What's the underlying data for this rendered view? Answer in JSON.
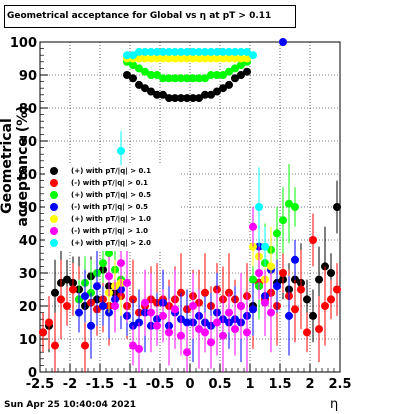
{
  "title": "Geometrical acceptance for Global vs  η at pT > 0.11",
  "timestamp": "Sun Apr 25 10:40:04 2021",
  "colors": {
    "pos_01": "#000000",
    "neg_01": "#ff0000",
    "pos_05": "#00ff00",
    "neg_05": "#0000ff",
    "pos_10": "#ffff00",
    "neg_10": "#ff00ff",
    "pos_20": "#00ffff"
  },
  "chart_data": {
    "type": "scatter",
    "xlabel": "η",
    "ylabel": "Geometrical acceptance (%)",
    "xlim": [
      -2.5,
      2.5
    ],
    "ylim": [
      0,
      100
    ],
    "x_ticks": [
      "-2.5",
      "-2",
      "-1.5",
      "-1",
      "-0.5",
      "0",
      "0.5",
      "1",
      "1.5",
      "2",
      "2.5"
    ],
    "y_ticks": [
      "0",
      "10",
      "20",
      "30",
      "40",
      "50",
      "60",
      "70",
      "80",
      "90",
      "100"
    ],
    "grid": true,
    "legend_position": "left-middle",
    "legend": [
      "(+) with pT/|q| > 0.1",
      "(-) with pT/|q| > 0.1",
      "(+) with pT/|q| > 0.5",
      "(-) with pT/|q| > 0.5",
      "(+) with pT/|q| > 1.0",
      "(-) with pT/|q| > 1.0",
      "(+) with pT/|q| > 2.0"
    ],
    "series": [
      {
        "name": "(+) with pT/|q| > 0.1",
        "color": "#000000",
        "x": [
          -2.45,
          -2.35,
          -2.25,
          -2.15,
          -2.05,
          -1.95,
          -1.85,
          -1.75,
          -1.65,
          -1.55,
          -1.45,
          -1.35,
          -1.25,
          -1.15,
          -1.05,
          -0.95,
          -0.85,
          -0.75,
          -0.65,
          -0.55,
          -0.45,
          -0.35,
          -0.25,
          -0.15,
          -0.05,
          0.05,
          0.15,
          0.25,
          0.35,
          0.45,
          0.55,
          0.65,
          0.75,
          0.85,
          0.95,
          1.05,
          1.15,
          1.25,
          1.35,
          1.45,
          1.55,
          1.65,
          1.75,
          1.85,
          1.95,
          2.05,
          2.15,
          2.25,
          2.35,
          2.45
        ],
        "y": [
          12,
          14,
          24,
          27,
          28,
          27,
          25,
          20,
          29,
          22,
          31,
          26,
          24,
          23,
          90,
          89,
          87,
          86,
          85,
          84,
          84,
          83,
          83,
          83,
          83,
          83,
          83,
          84,
          84,
          85,
          86,
          87,
          89,
          90,
          91,
          20,
          27,
          22,
          24,
          27,
          28,
          25,
          28,
          27,
          22,
          17,
          28,
          32,
          30,
          50
        ]
      },
      {
        "name": "(-) with pT/|q| > 0.1",
        "color": "#ff0000",
        "x": [
          -2.45,
          -2.35,
          -2.25,
          -2.15,
          -2.05,
          -1.95,
          -1.85,
          -1.75,
          -1.65,
          -1.55,
          -1.45,
          -1.35,
          -1.25,
          -1.15,
          -1.05,
          -0.95,
          -0.85,
          -0.75,
          -0.65,
          -0.55,
          -0.45,
          -0.35,
          -0.25,
          -0.15,
          -0.05,
          0.05,
          0.15,
          0.25,
          0.35,
          0.45,
          0.55,
          0.65,
          0.75,
          0.85,
          0.95,
          1.05,
          1.15,
          1.25,
          1.35,
          1.45,
          1.55,
          1.65,
          1.75,
          1.85,
          1.95,
          2.05,
          2.15,
          2.25,
          2.35,
          2.45
        ],
        "y": [
          12,
          15,
          8,
          22,
          20,
          25,
          22,
          8,
          21,
          19,
          22,
          20,
          26,
          23,
          20,
          22,
          18,
          20,
          22,
          21,
          22,
          20,
          22,
          24,
          19,
          23,
          21,
          24,
          20,
          25,
          22,
          24,
          22,
          20,
          23,
          19,
          27,
          22,
          24,
          20,
          30,
          23,
          19,
          25,
          12,
          40,
          13,
          20,
          22,
          25
        ]
      },
      {
        "name": "(+) with pT/|q| > 0.5",
        "color": "#00ff00",
        "x": [
          -1.85,
          -1.75,
          -1.65,
          -1.55,
          -1.45,
          -1.35,
          -1.25,
          -1.15,
          -1.05,
          -0.95,
          -0.85,
          -0.75,
          -0.65,
          -0.55,
          -0.45,
          -0.35,
          -0.25,
          -0.15,
          -0.05,
          0.05,
          0.15,
          0.25,
          0.35,
          0.45,
          0.55,
          0.65,
          0.75,
          0.85,
          0.95,
          1.05,
          1.15,
          1.25,
          1.35,
          1.45,
          1.55,
          1.65,
          1.75
        ],
        "y": [
          22,
          27,
          24,
          30,
          33,
          36,
          31,
          28,
          94,
          93,
          92,
          91,
          90,
          90,
          89,
          89,
          89,
          89,
          89,
          89,
          89,
          89,
          90,
          90,
          90,
          91,
          92,
          93,
          94,
          28,
          26,
          33,
          37,
          42,
          46,
          51,
          50
        ]
      },
      {
        "name": "(-) with pT/|q| > 0.5",
        "color": "#0000ff",
        "x": [
          -1.85,
          -1.75,
          -1.65,
          -1.55,
          -1.45,
          -1.35,
          -1.25,
          -1.15,
          -1.05,
          -0.95,
          -0.85,
          -0.75,
          -0.65,
          -0.55,
          -0.45,
          -0.35,
          -0.25,
          -0.15,
          -0.05,
          0.05,
          0.15,
          0.25,
          0.35,
          0.45,
          0.55,
          0.65,
          0.75,
          0.85,
          0.95,
          1.05,
          1.15,
          1.25,
          1.35,
          1.45,
          1.55,
          1.65,
          1.75
        ],
        "y": [
          18,
          23,
          14,
          26,
          20,
          18,
          22,
          25,
          17,
          14,
          15,
          18,
          14,
          16,
          21,
          14,
          18,
          16,
          15,
          15,
          17,
          15,
          14,
          18,
          16,
          15,
          16,
          15,
          17,
          19,
          38,
          23,
          31,
          26,
          100,
          17,
          34
        ]
      },
      {
        "name": "(+) with pT/|q| > 1.0",
        "color": "#ffff00",
        "x": [
          -1.35,
          -1.25,
          -1.15,
          -1.05,
          -0.95,
          -0.85,
          -0.75,
          -0.65,
          -0.55,
          -0.45,
          -0.35,
          -0.25,
          -0.15,
          -0.05,
          0.05,
          0.15,
          0.25,
          0.35,
          0.45,
          0.55,
          0.65,
          0.75,
          0.85,
          0.95,
          1.05,
          1.15,
          1.25,
          1.35
        ],
        "y": [
          24,
          26,
          27,
          95,
          95,
          95,
          95,
          95,
          95,
          95,
          95,
          95,
          95,
          95,
          95,
          95,
          95,
          95,
          95,
          95,
          95,
          95,
          95,
          95,
          38,
          35,
          28,
          32
        ]
      },
      {
        "name": "(-) with pT/|q| > 1.0",
        "color": "#ff00ff",
        "x": [
          -1.35,
          -1.25,
          -1.15,
          -1.05,
          -0.95,
          -0.85,
          -0.75,
          -0.65,
          -0.55,
          -0.45,
          -0.35,
          -0.25,
          -0.15,
          -0.05,
          0.05,
          0.15,
          0.25,
          0.35,
          0.45,
          0.55,
          0.65,
          0.75,
          0.85,
          0.95,
          1.05,
          1.15,
          1.25,
          1.35
        ],
        "y": [
          29,
          20,
          33,
          27,
          8,
          7,
          21,
          18,
          14,
          17,
          12,
          19,
          11,
          6,
          20,
          13,
          12,
          9,
          15,
          11,
          18,
          13,
          20,
          12,
          44,
          30,
          21,
          18
        ]
      },
      {
        "name": "(+) with pT/|q| > 2.0",
        "color": "#00ffff",
        "x": [
          -1.15,
          -1.05,
          -0.95,
          -0.85,
          -0.75,
          -0.65,
          -0.55,
          -0.45,
          -0.35,
          -0.25,
          -0.15,
          -0.05,
          0.05,
          0.15,
          0.25,
          0.35,
          0.45,
          0.55,
          0.65,
          0.75,
          0.85,
          0.95,
          1.05,
          1.15,
          1.25
        ],
        "y": [
          67,
          96,
          96,
          97,
          97,
          97,
          97,
          97,
          97,
          97,
          97,
          97,
          97,
          97,
          97,
          97,
          97,
          97,
          97,
          97,
          97,
          97,
          96,
          50,
          38
        ]
      }
    ]
  }
}
